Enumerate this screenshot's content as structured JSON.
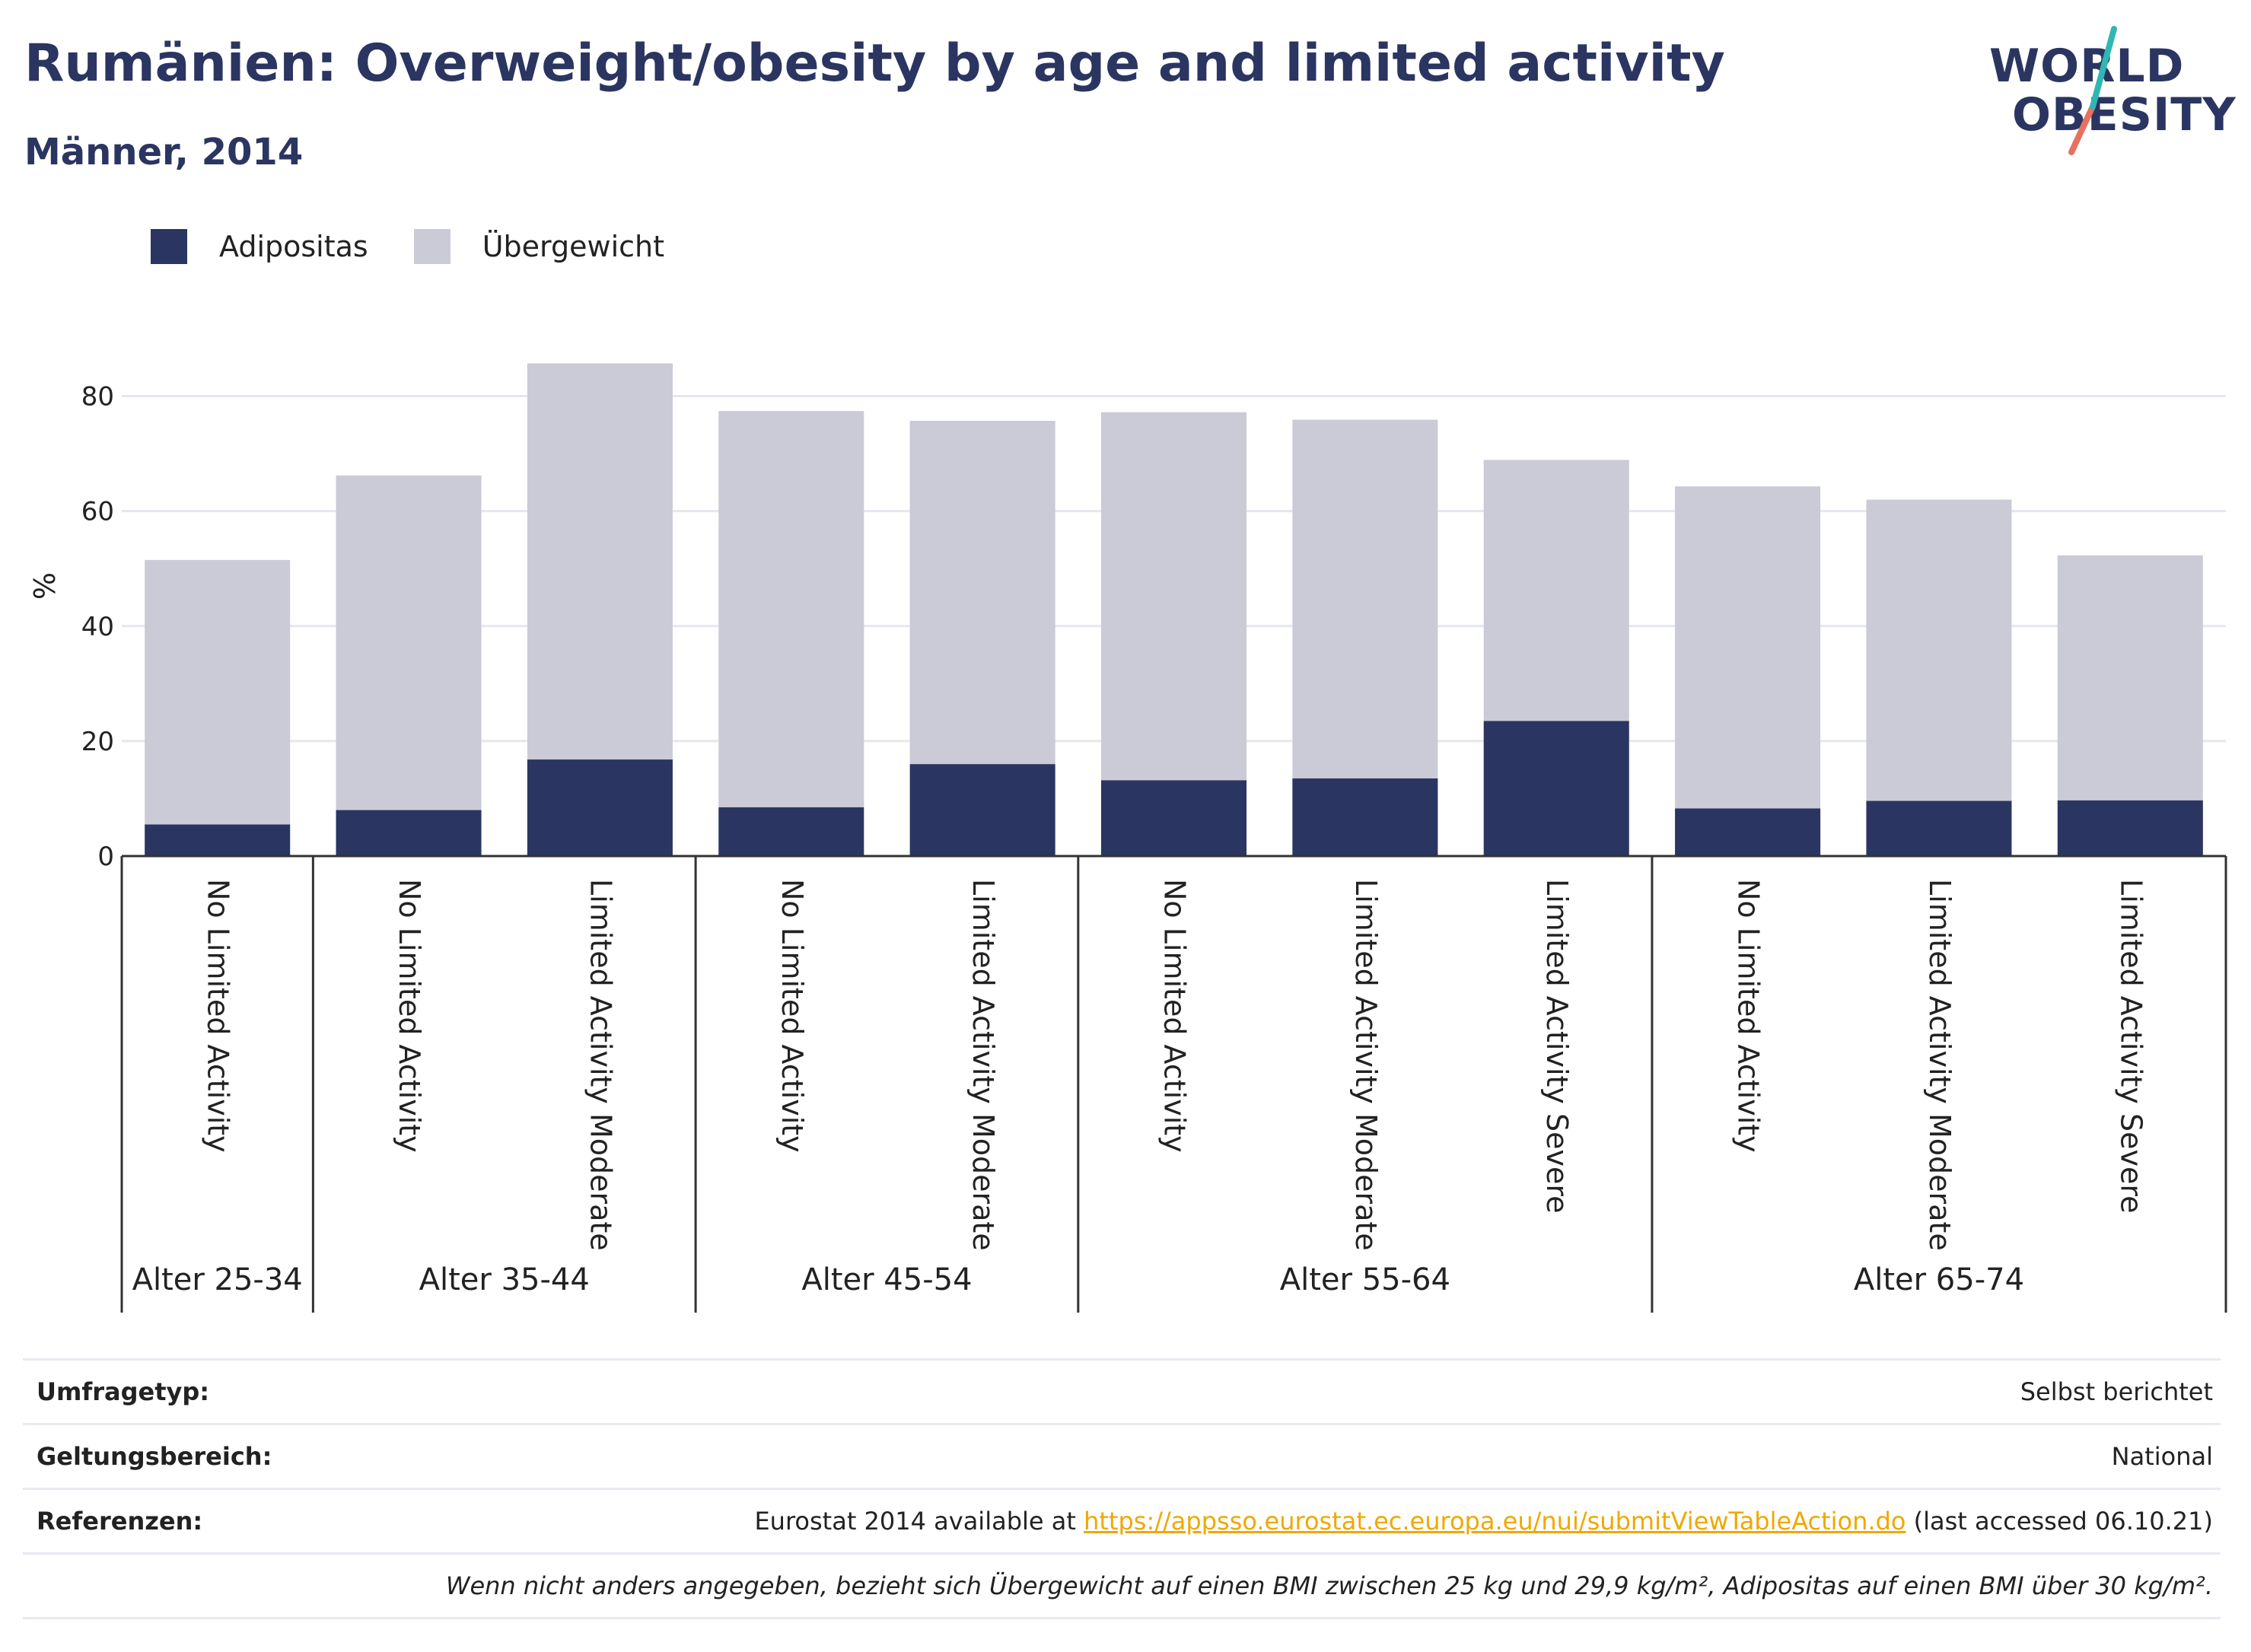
{
  "header": {
    "title": "Rumänien: Overweight/obesity by age and limited activity",
    "subtitle": "Männer, 2014"
  },
  "logo": {
    "line1": "WORLD",
    "line2": "OBESITY"
  },
  "legend": [
    {
      "label": "Adipositas",
      "color": "#2b3561"
    },
    {
      "label": "Übergewicht",
      "color": "#cacbd7"
    }
  ],
  "chart_data": {
    "type": "bar",
    "stacked": true,
    "ylabel": "%",
    "ylim": [
      0,
      90
    ],
    "yticks": [
      0,
      20,
      40,
      60,
      80
    ],
    "grid": true,
    "legend_position": "top-left",
    "groups": [
      {
        "label": "Alter 25-34",
        "categories": [
          "No Limited Activity"
        ]
      },
      {
        "label": "Alter 35-44",
        "categories": [
          "No Limited Activity",
          "Limited Activity Moderate"
        ]
      },
      {
        "label": "Alter 45-54",
        "categories": [
          "No Limited Activity",
          "Limited Activity Moderate"
        ]
      },
      {
        "label": "Alter 55-64",
        "categories": [
          "No Limited Activity",
          "Limited Activity Moderate",
          "Limited Activity Severe"
        ]
      },
      {
        "label": "Alter 65-74",
        "categories": [
          "No Limited Activity",
          "Limited Activity Moderate",
          "Limited Activity Severe"
        ]
      }
    ],
    "categories": [
      "No Limited Activity",
      "No Limited Activity",
      "Limited Activity Moderate",
      "No Limited Activity",
      "Limited Activity Moderate",
      "No Limited Activity",
      "Limited Activity Moderate",
      "Limited Activity Severe",
      "No Limited Activity",
      "Limited Activity Moderate",
      "Limited Activity Severe"
    ],
    "series": [
      {
        "name": "Adipositas",
        "color": "#2b3561",
        "values": [
          5.5,
          8.0,
          16.8,
          8.5,
          16.0,
          13.2,
          13.5,
          23.5,
          8.3,
          9.6,
          9.7
        ]
      },
      {
        "name": "Übergewicht",
        "color": "#cacbd7",
        "values": [
          46.0,
          58.2,
          68.9,
          68.9,
          59.7,
          64.0,
          62.4,
          45.4,
          56.0,
          52.4,
          42.6
        ]
      }
    ]
  },
  "info": {
    "survey_type_label": "Umfragetyp:",
    "survey_type_value": "Selbst berichtet",
    "coverage_label": "Geltungsbereich:",
    "coverage_value": "National",
    "references_label": "Referenzen:",
    "references_prefix": "Eurostat 2014 available at ",
    "references_link": "https://appsso.eurostat.ec.europa.eu/nui/submitViewTableAction.do",
    "references_suffix": " (last accessed 06.10.21)",
    "note": "Wenn nicht anders angegeben, bezieht sich Übergewicht auf einen BMI zwischen 25 kg und 29,9 kg/m², Adipositas auf einen BMI über 30 kg/m²."
  }
}
